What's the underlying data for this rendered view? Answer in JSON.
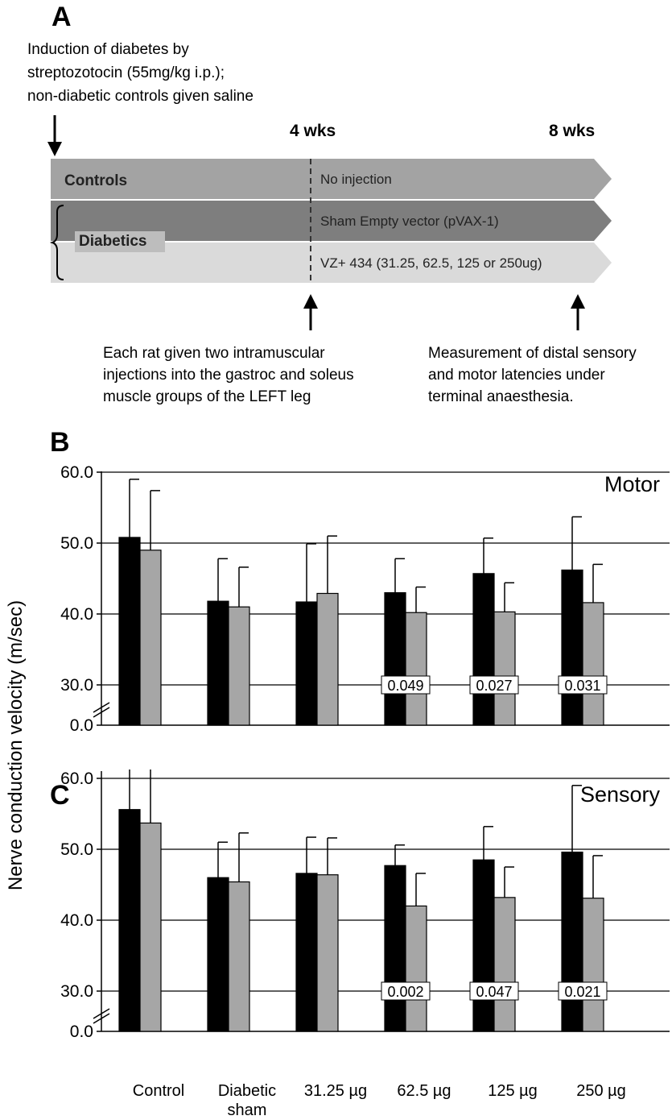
{
  "panel_a": {
    "letter": "A",
    "intro_lines": [
      "Induction of diabetes by",
      "streptozotocin (55mg/kg i.p.);",
      "non-diabetic controls given saline"
    ],
    "week_4": "4 wks",
    "week_8": "8 wks",
    "controls_label": "Controls",
    "diabetics_label": "Diabetics",
    "lane_controls_text": "No injection",
    "lane_sham_text": "Sham Empty vector (pVAX-1)",
    "lane_vz_text": "VZ+ 434 (31.25, 62.5, 125 or 250ug)",
    "note_injection_lines": [
      "Each rat given two intramuscular",
      "injections into the gastroc and soleus",
      "muscle groups of the LEFT leg"
    ],
    "note_measure_lines": [
      "Measurement of distal sensory",
      "and motor latencies under",
      "terminal anaesthesia."
    ],
    "colors": {
      "controls": "#a3a3a3",
      "sham": "#7e7e7e",
      "vz": "#dadada",
      "diabetics_box": "#bdbdbd"
    }
  },
  "y_axis_label": "Nerve conduction velocity (m/sec)",
  "chart_data": [
    {
      "type": "bar",
      "panel": "B",
      "title": "Motor",
      "categories": [
        "Control",
        "Diabetic sham",
        "31.25 µg",
        "62.5 µg",
        "125 µg",
        "250 µg"
      ],
      "series": [
        {
          "values": [
            50.8,
            41.8,
            41.7,
            43.0,
            45.7,
            46.2
          ],
          "errors": [
            8.2,
            6.0,
            8.2,
            4.8,
            5.0,
            7.5
          ],
          "color": "#000000"
        },
        {
          "values": [
            49.0,
            41.0,
            42.9,
            40.2,
            40.3,
            41.6
          ],
          "errors": [
            8.4,
            5.6,
            8.1,
            3.6,
            4.1,
            5.4
          ],
          "color": "#a6a6a6"
        }
      ],
      "p_values": [
        "",
        "",
        "",
        "0.049",
        "0.027",
        "0.031"
      ],
      "yticks": [
        "0.0",
        "30.0",
        "40.0",
        "50.0",
        "60.0"
      ],
      "ylim": [
        30,
        60
      ],
      "axis_break": true,
      "grid": true
    },
    {
      "type": "bar",
      "panel": "C",
      "title": "Sensory",
      "categories": [
        "Control",
        "Diabetic sham",
        "31.25 µg",
        "62.5 µg",
        "125 µg",
        "250 µg"
      ],
      "series": [
        {
          "values": [
            55.6,
            46.0,
            46.6,
            47.7,
            48.5,
            49.6
          ],
          "errors": [
            7.6,
            5.0,
            5.1,
            2.9,
            4.7,
            9.4
          ],
          "color": "#000000"
        },
        {
          "values": [
            53.7,
            45.4,
            46.4,
            42.0,
            43.2,
            43.1
          ],
          "errors": [
            11.0,
            6.9,
            5.2,
            4.6,
            4.3,
            6.0
          ],
          "color": "#a6a6a6"
        }
      ],
      "p_values": [
        "",
        "",
        "",
        "0.002",
        "0.047",
        "0.021"
      ],
      "yticks": [
        "0.0",
        "30.0",
        "40.0",
        "50.0",
        "60.0"
      ],
      "ylim": [
        30,
        67
      ],
      "axis_break": true,
      "grid": true
    }
  ],
  "x_labels": [
    [
      "Control"
    ],
    [
      "Diabetic",
      "sham"
    ],
    [
      "31.25 µg"
    ],
    [
      "62.5 µg"
    ],
    [
      "125 µg"
    ],
    [
      "250 µg"
    ]
  ]
}
